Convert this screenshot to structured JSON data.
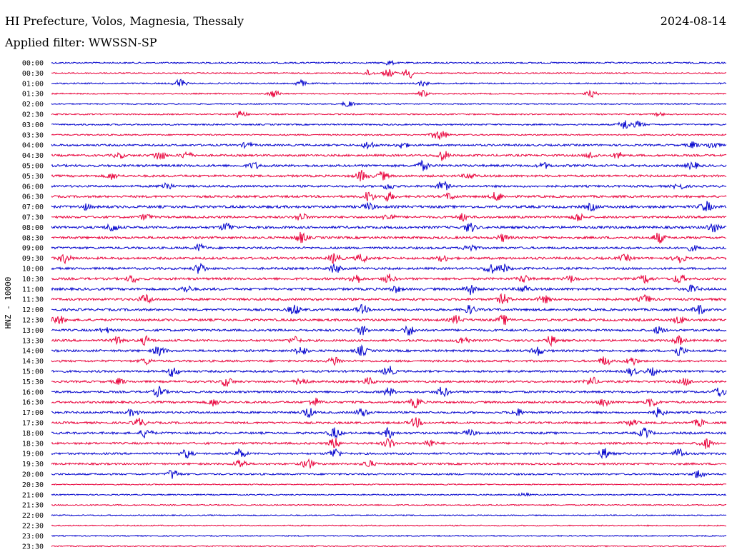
{
  "header": {
    "title": "HI Prefecture, Volos, Magnesia, Thessaly",
    "date": "2024-08-14",
    "filter_label": "Applied filter: WWSSN-SP"
  },
  "colors": {
    "trace_a": "#0000cc",
    "trace_b": "#e8003a",
    "background": "#ffffff",
    "text": "#000000"
  },
  "chart_data": {
    "type": "line",
    "title": "HI Prefecture, Volos, Magnesia, Thessaly",
    "ylabel": "HNZ - 10000",
    "xlabel": "",
    "grid": false,
    "legend": "none",
    "row_labels": [
      "00:00",
      "00:30",
      "01:00",
      "01:30",
      "02:00",
      "02:30",
      "03:00",
      "03:30",
      "04:00",
      "04:30",
      "05:00",
      "05:30",
      "06:00",
      "06:30",
      "07:00",
      "07:30",
      "08:00",
      "08:30",
      "09:00",
      "09:30",
      "10:00",
      "10:30",
      "11:00",
      "11:30",
      "12:00",
      "12:30",
      "13:00",
      "13:30",
      "14:00",
      "14:30",
      "15:00",
      "15:30",
      "16:00",
      "16:30",
      "17:00",
      "17:30",
      "18:00",
      "18:30",
      "19:00",
      "19:30",
      "20:00",
      "20:30",
      "21:00",
      "21:30",
      "22:00",
      "22:30",
      "23:00",
      "23:30"
    ],
    "row_activity": [
      0.25,
      0.12,
      0.2,
      0.18,
      0.15,
      0.18,
      0.25,
      0.2,
      0.45,
      0.5,
      0.6,
      0.55,
      0.5,
      0.55,
      0.7,
      0.55,
      0.65,
      0.6,
      0.55,
      0.6,
      0.55,
      0.6,
      0.65,
      0.6,
      0.6,
      0.6,
      0.55,
      0.55,
      0.55,
      0.5,
      0.5,
      0.5,
      0.5,
      0.5,
      0.5,
      0.5,
      0.55,
      0.5,
      0.45,
      0.45,
      0.35,
      0.1,
      0.15,
      0.12,
      0.1,
      0.12,
      0.12,
      0.12
    ],
    "events": [
      [
        [
          0.5,
          0.4
        ]
      ],
      [
        [
          0.47,
          0.6
        ],
        [
          0.5,
          0.8
        ],
        [
          0.53,
          1.0
        ]
      ],
      [
        [
          0.19,
          0.9
        ],
        [
          0.37,
          0.6
        ],
        [
          0.55,
          0.5
        ]
      ],
      [
        [
          0.33,
          0.7
        ],
        [
          0.55,
          0.6
        ],
        [
          0.8,
          0.6
        ]
      ],
      [
        [
          0.44,
          0.6
        ]
      ],
      [
        [
          0.28,
          0.8
        ],
        [
          0.9,
          0.3
        ]
      ],
      [
        [
          0.85,
          1.0
        ],
        [
          0.87,
          0.6
        ]
      ],
      [
        [
          0.57,
          0.7
        ],
        [
          0.58,
          0.6
        ]
      ],
      [
        [
          0.29,
          0.5
        ],
        [
          0.47,
          0.8
        ],
        [
          0.52,
          0.6
        ],
        [
          0.95,
          0.6
        ],
        [
          0.98,
          0.7
        ]
      ],
      [
        [
          0.1,
          0.5
        ],
        [
          0.16,
          1.0
        ],
        [
          0.2,
          0.7
        ],
        [
          0.58,
          1.0
        ],
        [
          0.8,
          0.6
        ],
        [
          0.84,
          0.6
        ]
      ],
      [
        [
          0.3,
          0.6
        ],
        [
          0.55,
          0.9
        ],
        [
          0.73,
          0.5
        ],
        [
          0.95,
          0.7
        ]
      ],
      [
        [
          0.09,
          0.6
        ],
        [
          0.46,
          1.0
        ],
        [
          0.49,
          0.8
        ],
        [
          0.62,
          0.6
        ]
      ],
      [
        [
          0.17,
          0.8
        ],
        [
          0.5,
          0.6
        ],
        [
          0.58,
          1.0
        ],
        [
          0.93,
          0.6
        ]
      ],
      [
        [
          0.47,
          1.0
        ],
        [
          0.5,
          0.8
        ],
        [
          0.59,
          0.6
        ],
        [
          0.66,
          0.9
        ]
      ],
      [
        [
          0.05,
          0.5
        ],
        [
          0.47,
          0.7
        ],
        [
          0.8,
          0.6
        ],
        [
          0.97,
          1.0
        ]
      ],
      [
        [
          0.14,
          0.6
        ],
        [
          0.37,
          0.8
        ],
        [
          0.5,
          0.7
        ],
        [
          0.61,
          0.7
        ],
        [
          0.78,
          0.8
        ]
      ],
      [
        [
          0.09,
          0.8
        ],
        [
          0.26,
          0.9
        ],
        [
          0.62,
          0.9
        ],
        [
          0.98,
          0.9
        ]
      ],
      [
        [
          0.37,
          1.0
        ],
        [
          0.67,
          0.7
        ],
        [
          0.9,
          1.0
        ]
      ],
      [
        [
          0.22,
          0.7
        ],
        [
          0.62,
          0.8
        ],
        [
          0.95,
          0.5
        ]
      ],
      [
        [
          0.02,
          0.9
        ],
        [
          0.42,
          1.0
        ],
        [
          0.46,
          0.8
        ],
        [
          0.58,
          0.6
        ],
        [
          0.85,
          0.6
        ],
        [
          0.93,
          1.0
        ]
      ],
      [
        [
          0.22,
          1.0
        ],
        [
          0.42,
          0.9
        ],
        [
          0.65,
          1.0
        ],
        [
          0.67,
          0.8
        ]
      ],
      [
        [
          0.12,
          0.7
        ],
        [
          0.45,
          1.0
        ],
        [
          0.5,
          0.8
        ],
        [
          0.7,
          0.7
        ],
        [
          0.77,
          0.6
        ],
        [
          0.88,
          0.8
        ],
        [
          0.93,
          0.9
        ]
      ],
      [
        [
          0.2,
          0.6
        ],
        [
          0.51,
          0.6
        ],
        [
          0.62,
          1.0
        ],
        [
          0.7,
          0.6
        ],
        [
          0.95,
          0.7
        ]
      ],
      [
        [
          0.14,
          0.9
        ],
        [
          0.67,
          1.0
        ],
        [
          0.73,
          0.7
        ],
        [
          0.88,
          0.8
        ]
      ],
      [
        [
          0.36,
          1.0
        ],
        [
          0.46,
          0.8
        ],
        [
          0.62,
          0.8
        ],
        [
          0.96,
          0.9
        ]
      ],
      [
        [
          0.01,
          0.9
        ],
        [
          0.6,
          0.8
        ],
        [
          0.67,
          0.9
        ],
        [
          0.93,
          0.7
        ]
      ],
      [
        [
          0.08,
          0.5
        ],
        [
          0.46,
          0.9
        ],
        [
          0.53,
          1.0
        ],
        [
          0.9,
          0.7
        ]
      ],
      [
        [
          0.1,
          0.9
        ],
        [
          0.14,
          0.8
        ],
        [
          0.36,
          0.7
        ],
        [
          0.61,
          0.8
        ],
        [
          0.74,
          0.9
        ],
        [
          0.93,
          0.8
        ]
      ],
      [
        [
          0.16,
          1.0
        ],
        [
          0.37,
          0.9
        ],
        [
          0.46,
          0.9
        ],
        [
          0.72,
          0.9
        ],
        [
          0.93,
          1.0
        ]
      ],
      [
        [
          0.14,
          0.6
        ],
        [
          0.42,
          0.9
        ],
        [
          0.82,
          0.9
        ],
        [
          0.86,
          0.8
        ]
      ],
      [
        [
          0.18,
          1.0
        ],
        [
          0.5,
          1.0
        ],
        [
          0.86,
          0.7
        ],
        [
          0.89,
          0.7
        ]
      ],
      [
        [
          0.1,
          0.6
        ],
        [
          0.26,
          0.9
        ],
        [
          0.37,
          0.9
        ],
        [
          0.47,
          0.7
        ],
        [
          0.8,
          0.9
        ],
        [
          0.94,
          0.7
        ]
      ],
      [
        [
          0.16,
          1.0
        ],
        [
          0.5,
          0.8
        ],
        [
          0.58,
          1.0
        ],
        [
          0.99,
          1.0
        ]
      ],
      [
        [
          0.24,
          0.7
        ],
        [
          0.39,
          0.8
        ],
        [
          0.54,
          1.0
        ],
        [
          0.82,
          0.9
        ],
        [
          0.89,
          0.9
        ]
      ],
      [
        [
          0.12,
          0.7
        ],
        [
          0.38,
          1.0
        ],
        [
          0.46,
          0.8
        ],
        [
          0.69,
          0.7
        ],
        [
          0.9,
          0.9
        ]
      ],
      [
        [
          0.13,
          0.9
        ],
        [
          0.54,
          0.9
        ],
        [
          0.86,
          0.6
        ],
        [
          0.96,
          0.7
        ]
      ],
      [
        [
          0.14,
          0.9
        ],
        [
          0.42,
          1.0
        ],
        [
          0.5,
          0.9
        ],
        [
          0.62,
          0.6
        ],
        [
          0.88,
          1.0
        ]
      ],
      [
        [
          0.42,
          1.0
        ],
        [
          0.5,
          1.0
        ],
        [
          0.56,
          0.7
        ],
        [
          0.97,
          1.0
        ]
      ],
      [
        [
          0.2,
          0.8
        ],
        [
          0.28,
          0.9
        ],
        [
          0.42,
          1.0
        ],
        [
          0.82,
          1.0
        ],
        [
          0.93,
          1.0
        ]
      ],
      [
        [
          0.28,
          0.9
        ],
        [
          0.38,
          1.0
        ],
        [
          0.47,
          0.7
        ]
      ],
      [
        [
          0.18,
          1.0
        ],
        [
          0.96,
          0.9
        ]
      ],
      [],
      [
        [
          0.7,
          0.3
        ]
      ],
      [],
      [],
      [],
      [],
      []
    ]
  }
}
